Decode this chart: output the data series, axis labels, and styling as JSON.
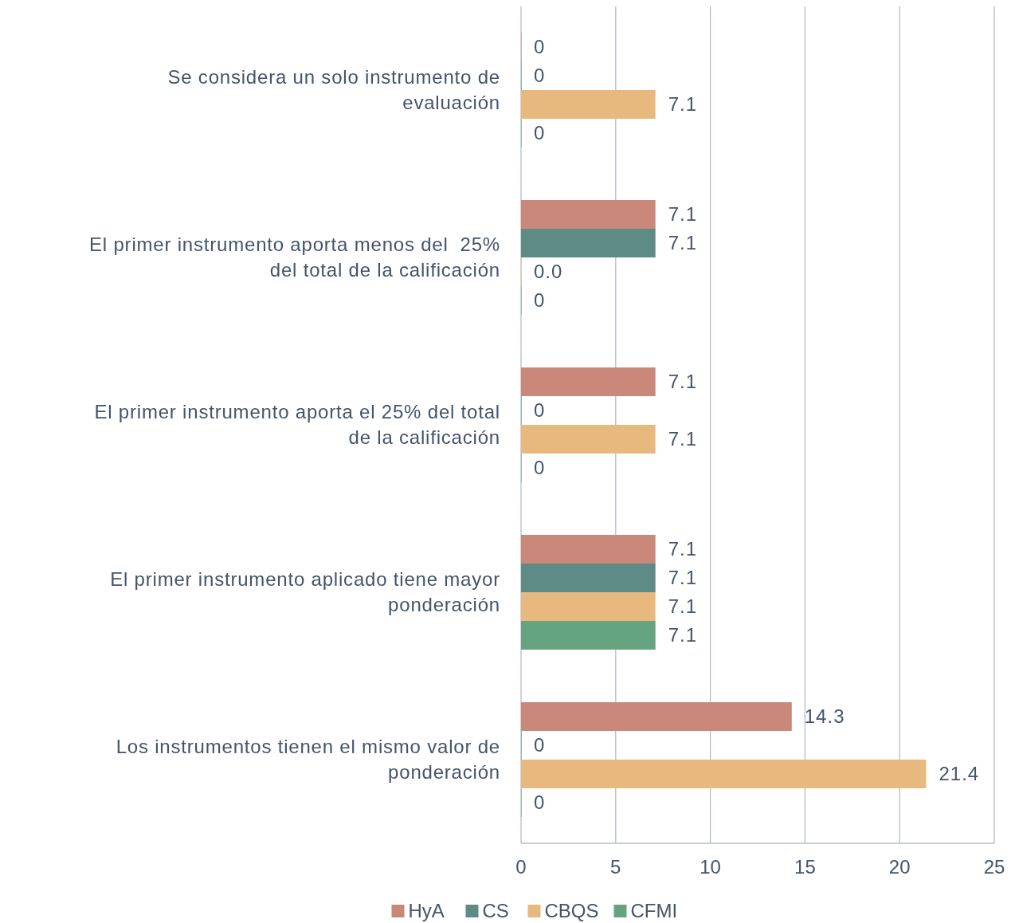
{
  "chart_data": {
    "type": "bar",
    "orientation": "horizontal",
    "categories": [
      "Se considera un solo instrumento de evaluación",
      "El primer instrumento aporta menos del  25% del total de la calificación",
      "El primer instrumento aporta el 25% del total de la calificación",
      "El primer instrumento aplicado tiene mayor ponderación",
      "Los instrumentos tienen el mismo valor de ponderación"
    ],
    "series": [
      {
        "name": "HyA",
        "color": "#c9887a",
        "values": [
          0,
          7.1,
          7.1,
          7.1,
          14.3
        ],
        "value_labels": [
          "0",
          "7.1",
          "7.1",
          "7.1",
          "14.3"
        ]
      },
      {
        "name": "CS",
        "color": "#5e8b86",
        "values": [
          0,
          7.1,
          0,
          7.1,
          0
        ],
        "value_labels": [
          "0",
          "7.1",
          "0",
          "7.1",
          "0"
        ]
      },
      {
        "name": "CBQS",
        "color": "#e8b97f",
        "values": [
          7.1,
          0,
          7.1,
          7.1,
          21.4
        ],
        "value_labels": [
          "7.1",
          "0.0",
          "7.1",
          "7.1",
          "21.4"
        ]
      },
      {
        "name": "CFMI",
        "color": "#65a47f",
        "values": [
          0,
          0,
          0,
          7.1,
          0
        ],
        "value_labels": [
          "0",
          "0",
          "0",
          "7.1",
          "0"
        ]
      }
    ],
    "xlim": [
      0,
      25
    ],
    "xticks": [
      0,
      5,
      10,
      15,
      20,
      25
    ],
    "grid": "x",
    "legend": "bottom"
  }
}
